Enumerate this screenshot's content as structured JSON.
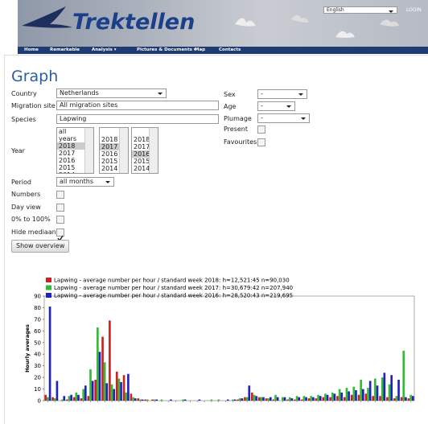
{
  "header": {
    "logo": "Trektellen",
    "language": "English",
    "login": "LOGIN",
    "nav": [
      "Home",
      "Remarkable",
      "Analysis ▾",
      "Pictures & Documents ▾",
      "Map",
      "Contacts"
    ]
  },
  "form": {
    "title": "Graph",
    "country": {
      "label": "Country",
      "value": "Netherlands"
    },
    "site": {
      "label": "Migration site",
      "value": "All migration sites"
    },
    "species": {
      "label": "Species",
      "value": "Lapwing"
    },
    "year": {
      "label": "Year",
      "lists": [
        [
          "all years",
          "2018",
          "2017",
          "2016",
          "2015",
          "2014"
        ],
        [
          "2018",
          "2017",
          "2016",
          "2015",
          "2014"
        ],
        [
          "2018",
          "2017",
          "2016",
          "2015",
          "2014"
        ]
      ],
      "selected": [
        "2018",
        "2017",
        "2016"
      ]
    },
    "period": {
      "label": "Period",
      "value": "all months"
    },
    "checks": [
      {
        "label": "Numbers",
        "checked": false
      },
      {
        "label": "Day view",
        "checked": false
      },
      {
        "label": "0% to 100%",
        "checked": false
      },
      {
        "label": "Hide mediaan",
        "checked": true
      }
    ],
    "button": "Show overview",
    "right": [
      {
        "label": "Sex",
        "value": "-"
      },
      {
        "label": "Age",
        "value": "-"
      },
      {
        "label": "Plumage",
        "value": "-"
      }
    ],
    "right_checks": [
      {
        "label": "Present",
        "checked": false
      },
      {
        "label": "Favourites",
        "checked": false
      }
    ]
  },
  "chart_data": {
    "type": "bar",
    "ylabel": "Hourly averages",
    "categories": [
      null,
      null,
      null,
      null,
      null,
      null,
      null,
      null,
      null,
      null,
      null,
      null,
      null,
      null,
      null,
      null,
      null,
      null,
      null,
      null,
      null,
      null,
      null,
      null,
      null,
      null,
      null,
      null,
      null,
      null,
      null,
      null,
      null,
      null,
      null,
      null,
      null,
      null,
      null,
      null,
      null,
      null,
      null,
      null,
      null,
      null,
      null,
      null,
      null,
      null,
      null,
      null
    ],
    "series": [
      {
        "name": "Lapwing - average number per hour / standard week 2018: h=12,521:45 n=90,030",
        "color": "#cc2222",
        "values": [
          5,
          3,
          0,
          1,
          3,
          2,
          4,
          18,
          55,
          69,
          25,
          22,
          6,
          2,
          1,
          1,
          0,
          0,
          0,
          0,
          0,
          0,
          0,
          0,
          0,
          0,
          0,
          1,
          3,
          7,
          3,
          2,
          1,
          0,
          1,
          1,
          1,
          2,
          2,
          3,
          3,
          4,
          3,
          5,
          5,
          6,
          4,
          4,
          3,
          2,
          3,
          2
        ]
      },
      {
        "name": "Lapwing - average number per hour / standard week 2017: h=30,679:42 n=207,940",
        "color": "#33bb33",
        "values": [
          3,
          2,
          1,
          4,
          7,
          10,
          27,
          63,
          33,
          14,
          19,
          7,
          3,
          1,
          1,
          1,
          1,
          0,
          0,
          1,
          0,
          0,
          0,
          1,
          1,
          0,
          1,
          2,
          3,
          5,
          3,
          2,
          5,
          3,
          3,
          4,
          4,
          4,
          5,
          6,
          7,
          10,
          11,
          12,
          18,
          11,
          19,
          20,
          14,
          4,
          43,
          5
        ]
      },
      {
        "name": "Lapwing - average number per hour / standard week 2016: h=28,520:43 n=219,695",
        "color": "#2222bb",
        "values": [
          81,
          17,
          4,
          5,
          5,
          13,
          17,
          42,
          15,
          10,
          16,
          23,
          2,
          1,
          0,
          1,
          0,
          1,
          0,
          1,
          0,
          1,
          0,
          0,
          0,
          1,
          1,
          2,
          13,
          4,
          3,
          3,
          3,
          3,
          2,
          3,
          3,
          3,
          4,
          5,
          6,
          7,
          8,
          9,
          10,
          17,
          13,
          24,
          22,
          18,
          3,
          4
        ]
      }
    ],
    "ylim": [
      0,
      90
    ],
    "yticks": [
      0,
      10,
      20,
      30,
      40,
      50,
      60,
      70,
      80,
      90
    ]
  }
}
